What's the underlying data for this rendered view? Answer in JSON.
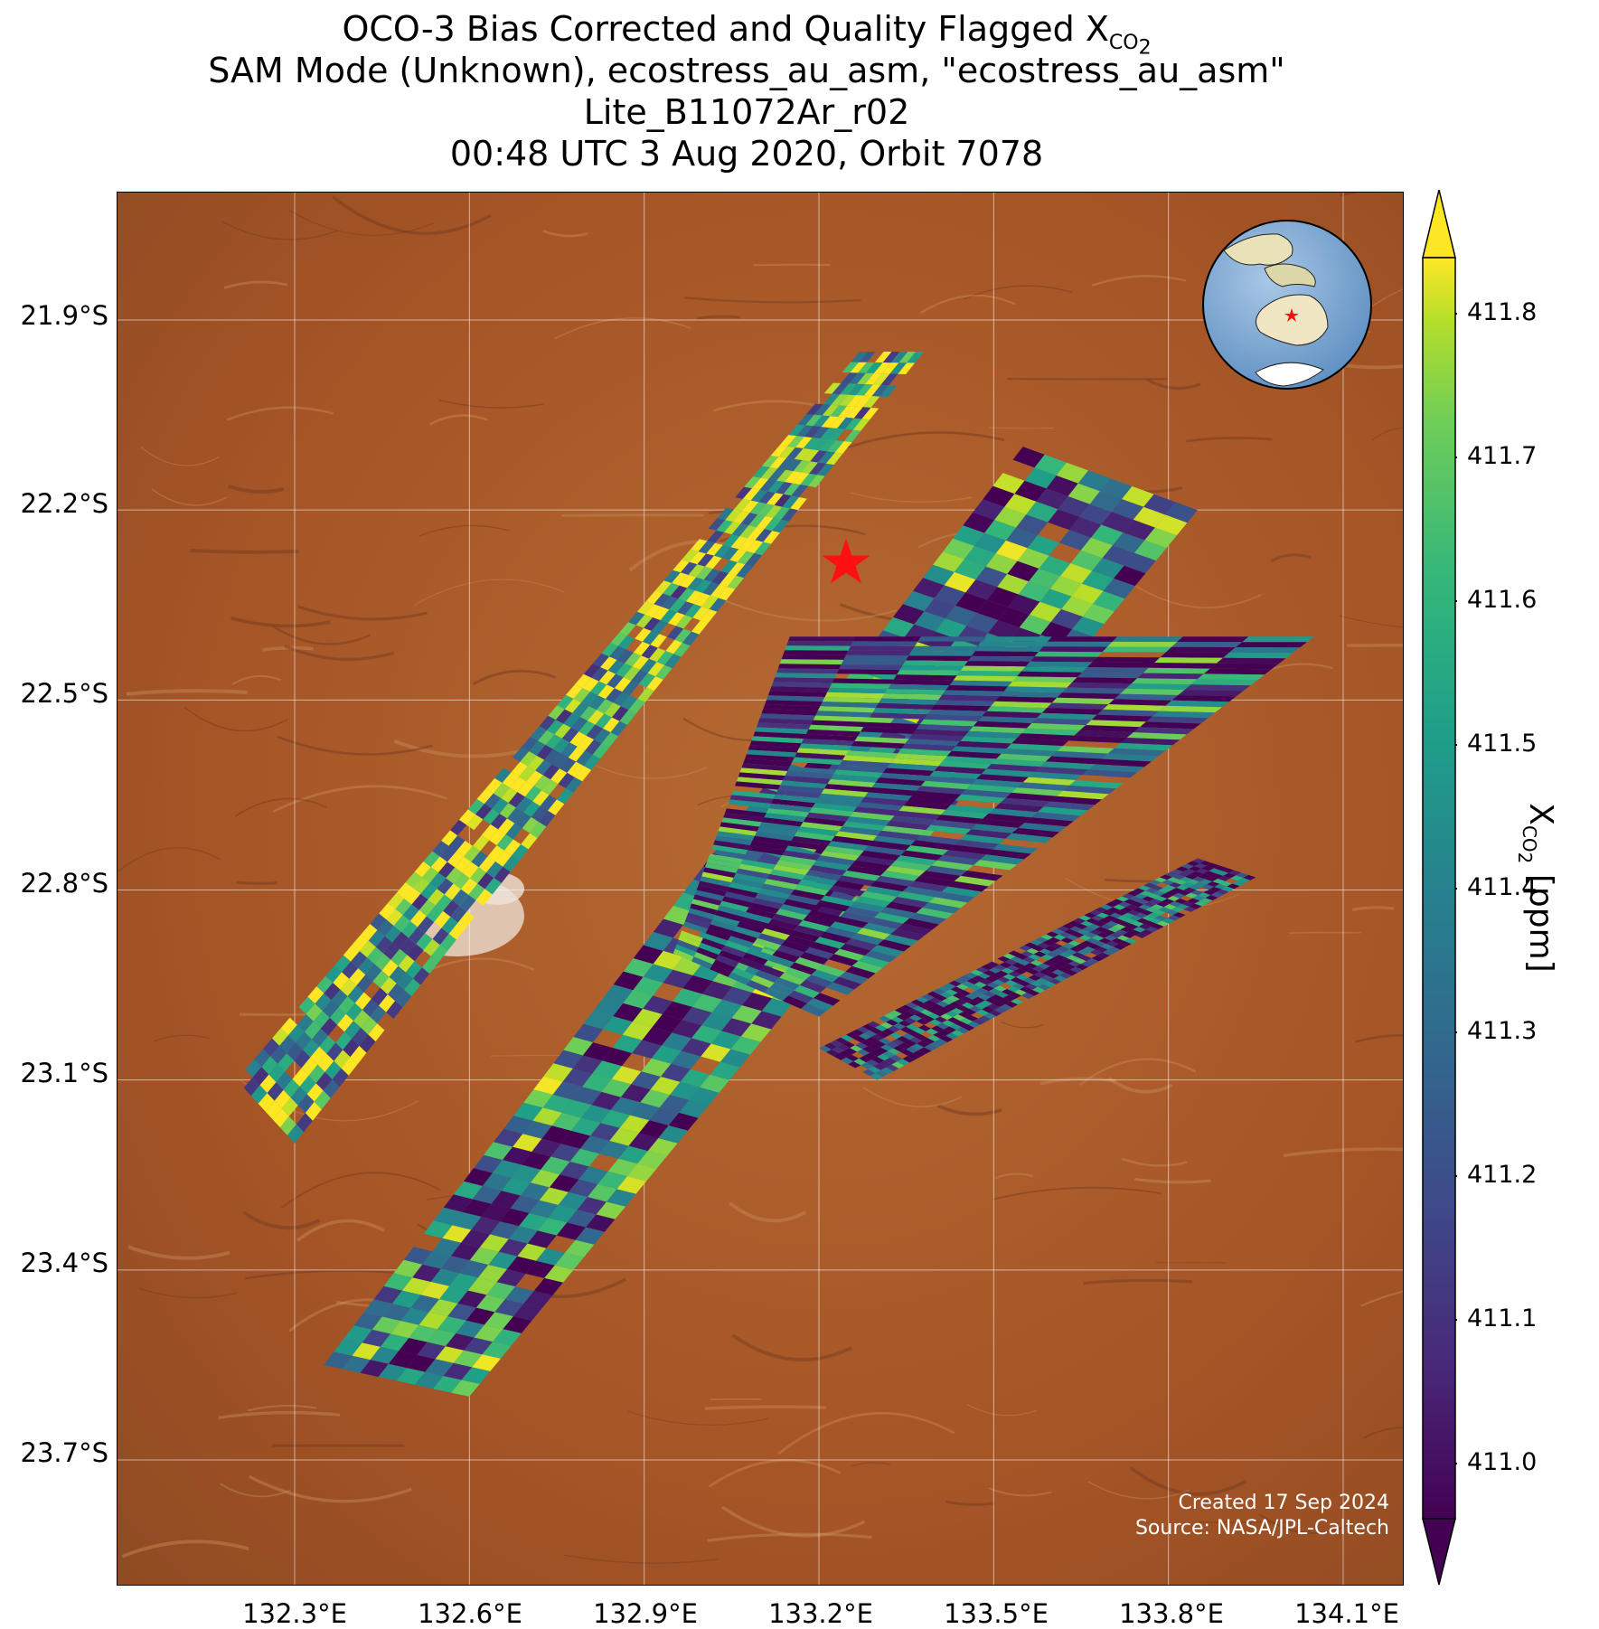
{
  "title": {
    "line1_prefix": "OCO-3 Bias Corrected and Quality Flagged X",
    "line1_sub": "CO",
    "line1_subsub": "2",
    "line2": "SAM Mode (Unknown), ecostress_au_asm, \"ecostress_au_asm\"",
    "line3": "Lite_B11072Ar_r02",
    "line4": "00:48 UTC 3 Aug 2020, Orbit 7078"
  },
  "map": {
    "lat_ticks": [
      "21.9°S",
      "22.2°S",
      "22.5°S",
      "22.8°S",
      "23.1°S",
      "23.4°S",
      "23.7°S"
    ],
    "lon_ticks": [
      "132.3°E",
      "132.6°E",
      "132.9°E",
      "133.2°E",
      "133.5°E",
      "133.8°E",
      "134.1°E"
    ],
    "target_marker": "red-star",
    "credit_line1": "Created 17 Sep 2024",
    "credit_line2": "Source: NASA/JPL-Caltech",
    "inset_globe": "Australia region globe with red star marker"
  },
  "colorbar": {
    "label_prefix": "X",
    "label_sub": "CO",
    "label_subsub": "2",
    "label_suffix": " [ppm]",
    "ticks": [
      "411.8",
      "411.7",
      "411.6",
      "411.5",
      "411.4",
      "411.3",
      "411.2",
      "411.1",
      "411.0"
    ],
    "colormap": "viridis",
    "extend": "both"
  },
  "chart_data": {
    "type": "heatmap",
    "title": "OCO-3 Bias Corrected and Quality Flagged XCO2",
    "xlabel": "",
    "ylabel": "",
    "xlim_deg_e": [
      132.0,
      134.2
    ],
    "ylim_deg_s": [
      22.0,
      23.9
    ],
    "xticks": [
      132.3,
      132.6,
      132.9,
      133.2,
      133.5,
      133.8,
      134.1
    ],
    "yticks": [
      -21.9,
      -22.2,
      -22.5,
      -22.8,
      -23.1,
      -23.4,
      -23.7
    ],
    "colorbar_range_ppm": [
      411.0,
      411.8
    ],
    "target": {
      "lon": 133.25,
      "lat": -22.28
    },
    "swaths": [
      {
        "name": "swath-1",
        "corners": [
          [
            133.27,
            -21.95
          ],
          [
            133.38,
            -21.95
          ],
          [
            132.3,
            -23.2
          ],
          [
            132.2,
            -23.1
          ]
        ],
        "mean_ppm": 411.55
      },
      {
        "name": "swath-2",
        "corners": [
          [
            133.55,
            -22.1
          ],
          [
            133.85,
            -22.2
          ],
          [
            132.6,
            -23.6
          ],
          [
            132.35,
            -23.55
          ]
        ],
        "mean_ppm": 411.35
      },
      {
        "name": "swath-3",
        "corners": [
          [
            133.15,
            -22.4
          ],
          [
            134.05,
            -22.4
          ],
          [
            133.2,
            -23.0
          ],
          [
            132.95,
            -22.9
          ]
        ],
        "mean_ppm": 411.25
      },
      {
        "name": "swath-4",
        "corners": [
          [
            133.85,
            -22.75
          ],
          [
            133.95,
            -22.78
          ],
          [
            133.3,
            -23.1
          ],
          [
            133.2,
            -23.05
          ]
        ],
        "mean_ppm": 411.15
      }
    ]
  }
}
